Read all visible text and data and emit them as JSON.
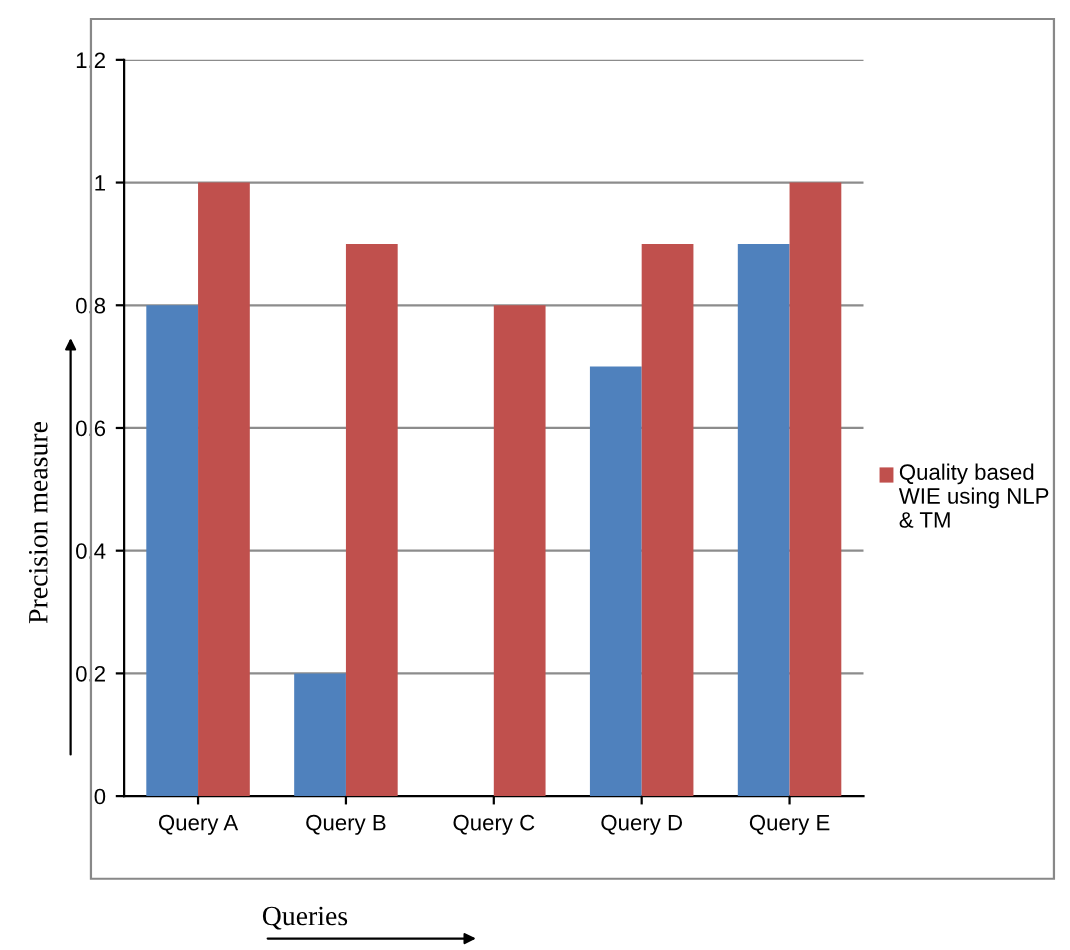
{
  "chart_data": {
    "type": "bar",
    "xlabel": "Queries",
    "ylabel": "Precision measure",
    "categories": [
      "Query A",
      "Query B",
      "Query C",
      "Query D",
      "Query E"
    ],
    "series": [
      {
        "color": "#4f81bd",
        "values": [
          0.8,
          0.2,
          0,
          0.7,
          0.9
        ]
      },
      {
        "name": "Quality based WIE using NLP & TM",
        "color": "#c0504d",
        "values": [
          1,
          0.9,
          0.8,
          0.9,
          1
        ]
      }
    ],
    "ylim": [
      0,
      1.2
    ],
    "yticks": [
      0,
      0.2,
      0.4,
      0.6,
      0.8,
      1,
      1.2
    ],
    "grid": "y",
    "legend": "right"
  }
}
